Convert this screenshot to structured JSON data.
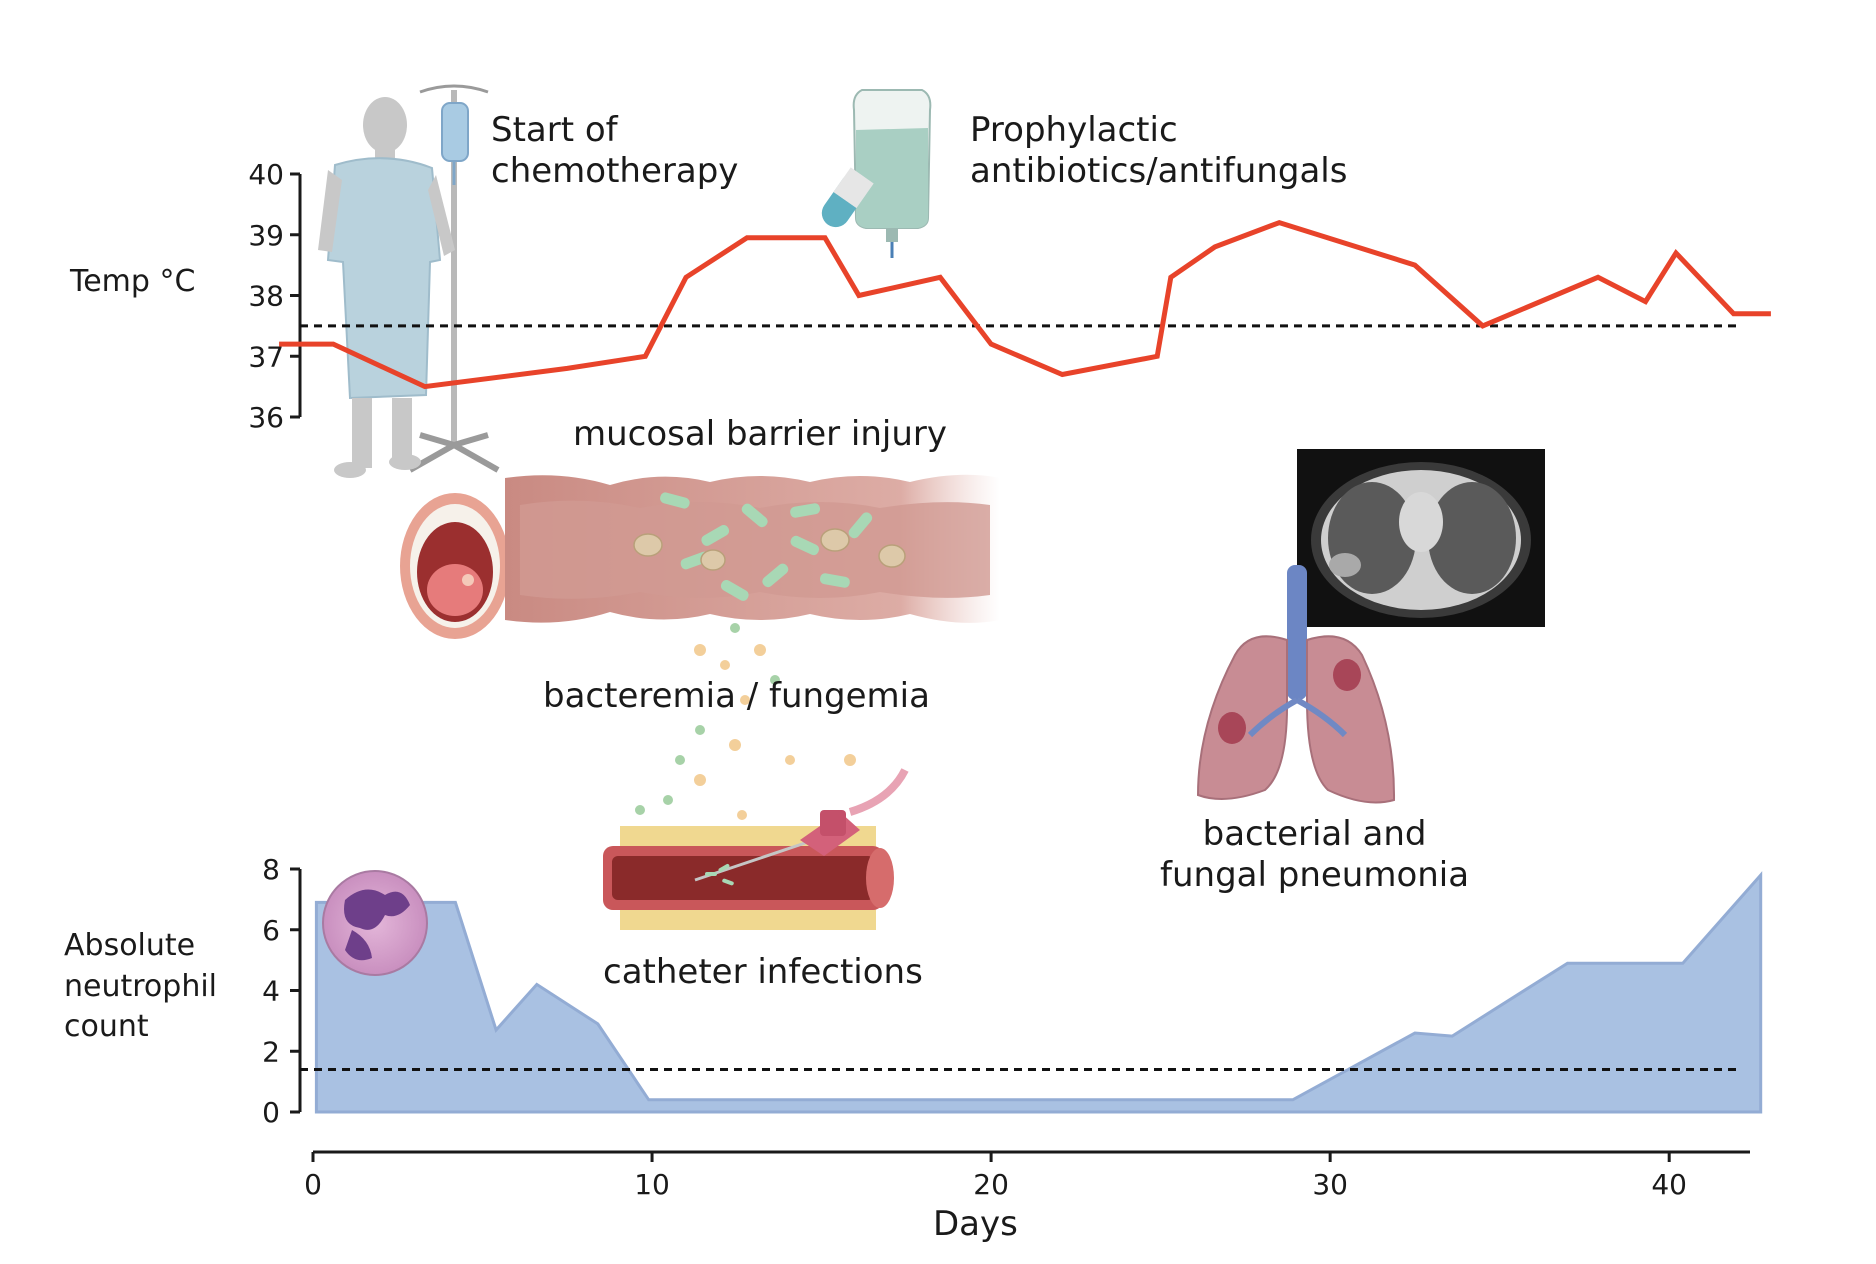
{
  "labels": {
    "temp_axis": "Temp °C",
    "anc_axis": "Absolute\nneutrophil\ncount",
    "x_axis": "Days",
    "chemo": "Start of\nchemotherapy",
    "prophylaxis": "Prophylactic\nantibiotics/antifungals",
    "mucosal": "mucosal barrier injury",
    "bacteremia": "bacteremia / fungemia",
    "catheter": "catheter infections",
    "pneumonia": "bacterial and\nfungal pneumonia"
  },
  "icons": [
    "patient-with-iv-icon",
    "iv-bag-pill-icon",
    "open-mouth-icon",
    "intestine-icon",
    "catheter-vessel-icon",
    "lungs-icon",
    "ct-scan-image",
    "neutrophil-cell-icon"
  ],
  "colors": {
    "temperature_line": "#e8432a",
    "neutrophil_fill": "#a9c1e2",
    "neutrophil_edge": "#93acd4",
    "threshold": "#111111"
  },
  "chart_data": [
    {
      "type": "line",
      "ylim": [
        36,
        40
      ],
      "yticks": [
        "36",
        "37",
        "38",
        "39",
        "40"
      ],
      "xlim": [
        0,
        42
      ],
      "threshold": 37.5,
      "x": [
        -1,
        0.6,
        3.3,
        7.5,
        9.8,
        11.0,
        12.8,
        15.1,
        16.1,
        18.5,
        20.0,
        22.1,
        24.9,
        25.3,
        26.6,
        28.5,
        32.5,
        34.5,
        37.9,
        39.3,
        40.2,
        41.9,
        43
      ],
      "y": [
        37.2,
        37.2,
        36.5,
        36.8,
        37.0,
        38.3,
        38.95,
        38.95,
        38.0,
        38.3,
        37.2,
        36.7,
        37.0,
        38.3,
        38.8,
        39.2,
        38.5,
        37.5,
        38.3,
        37.9,
        38.7,
        37.7,
        37.7
      ]
    },
    {
      "type": "area",
      "ylim": [
        0,
        8
      ],
      "yticks": [
        "0",
        "2",
        "4",
        "6",
        "8"
      ],
      "xlim": [
        0,
        42
      ],
      "threshold": 1.4,
      "x": [
        0.1,
        4.2,
        5.4,
        6.6,
        8.4,
        9.9,
        12,
        20,
        28.9,
        32.5,
        33.6,
        37.0,
        40.4,
        42.7
      ],
      "y": [
        6.9,
        6.9,
        2.7,
        4.2,
        2.9,
        0.4,
        0.4,
        0.4,
        0.4,
        2.6,
        2.5,
        4.9,
        4.9,
        7.8
      ]
    }
  ],
  "x_ticks": [
    "0",
    "10",
    "20",
    "30",
    "40"
  ],
  "x_tick_values": [
    0,
    10,
    20,
    30,
    40
  ]
}
